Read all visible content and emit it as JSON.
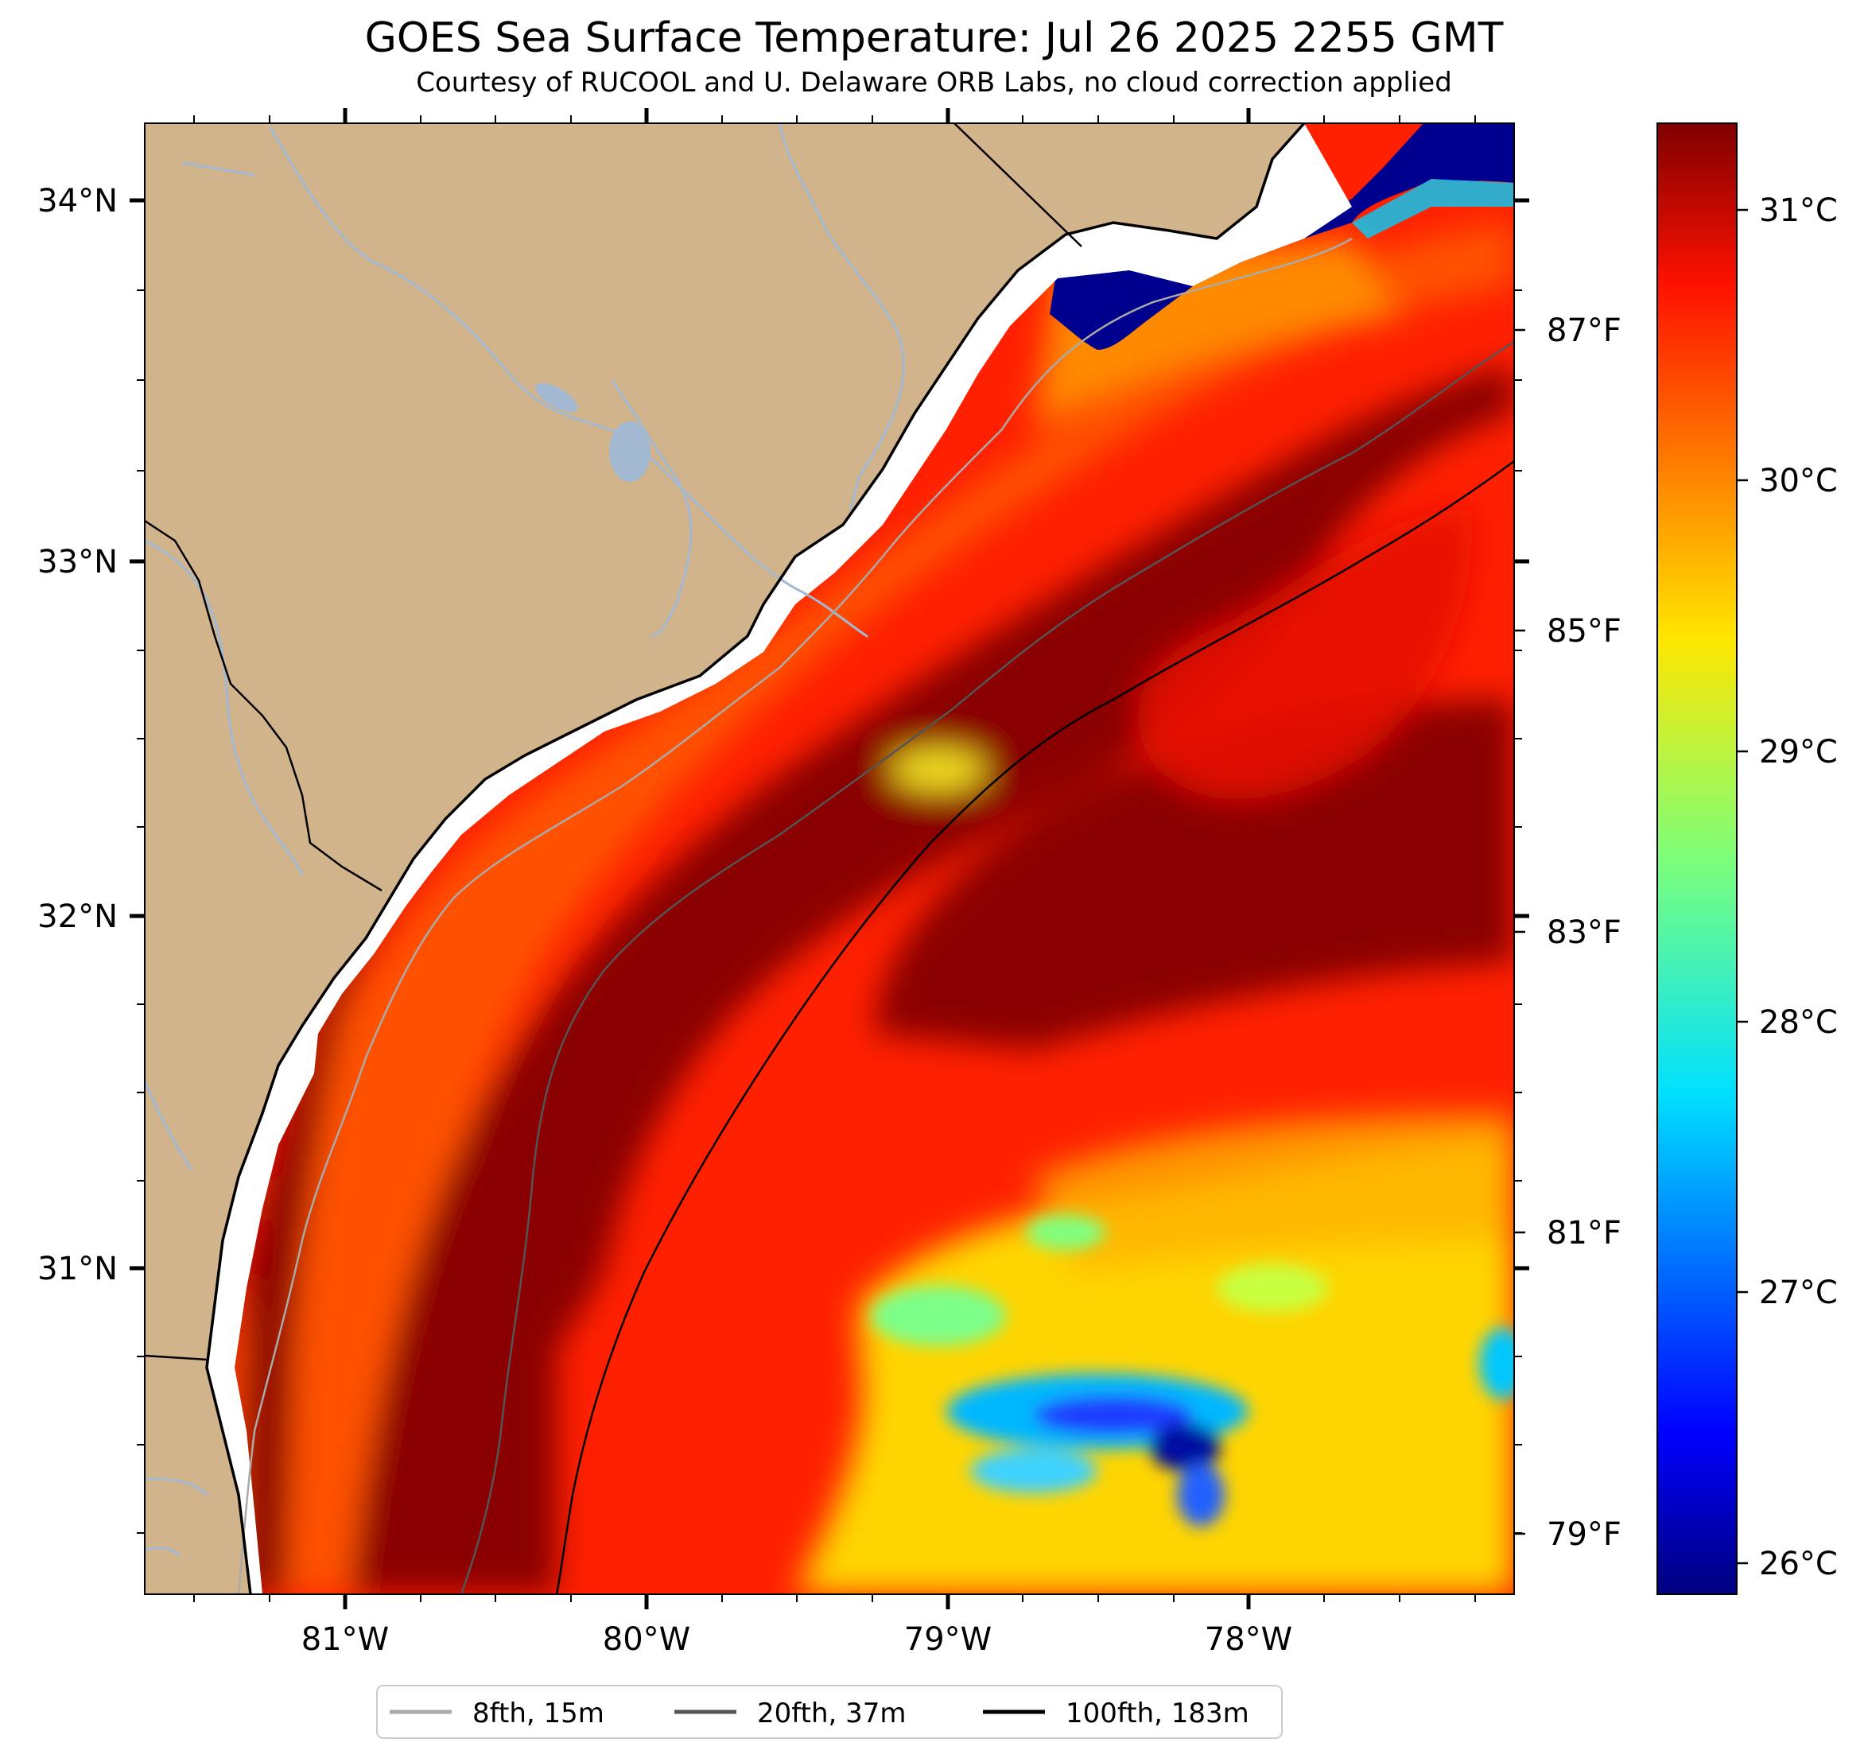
{
  "title": "GOES Sea Surface Temperature: Jul 26 2025 2255 GMT",
  "subtitle": "Courtesy of RUCOOL and U. Delaware ORB Labs, no cloud correction applied",
  "map": {
    "lat_labels": [
      "34°N",
      "33°N",
      "32°N",
      "31°N"
    ],
    "lon_labels": [
      "81°W",
      "80°W",
      "79°W",
      "78°W"
    ],
    "colors": {
      "land": "#d2b48c",
      "rivers": "#a3b8d1",
      "coast": "#000000",
      "warm_water": "#800000",
      "cool_water": "#00008f"
    }
  },
  "colorbar": {
    "celsius_labels": [
      "31°C",
      "30°C",
      "29°C",
      "28°C",
      "27°C",
      "26°C"
    ],
    "fahrenheit_labels": [
      "87°F",
      "85°F",
      "83°F",
      "81°F",
      "79°F"
    ],
    "range_c": [
      25.8,
      31.3
    ],
    "colormap": "jet"
  },
  "legend": {
    "items": [
      {
        "label": "8fth, 15m",
        "color": "#aaaaaa"
      },
      {
        "label": "20fth, 37m",
        "color": "#555555"
      },
      {
        "label": "100fth, 183m",
        "color": "#000000"
      }
    ]
  }
}
